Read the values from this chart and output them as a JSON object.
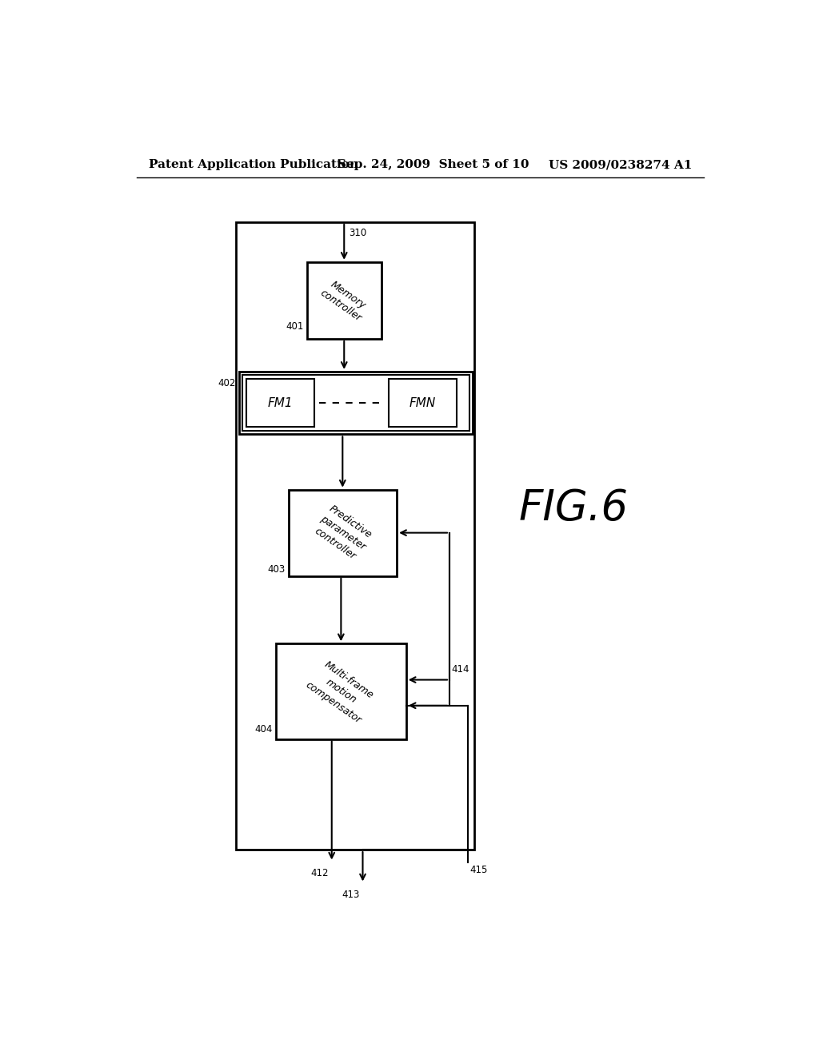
{
  "bg_color": "#ffffff",
  "header_left": "Patent Application Publication",
  "header_mid": "Sep. 24, 2009  Sheet 5 of 10",
  "header_right": "US 2009/0238274 A1",
  "fig_label": "FIG.6",
  "lw": 1.5
}
